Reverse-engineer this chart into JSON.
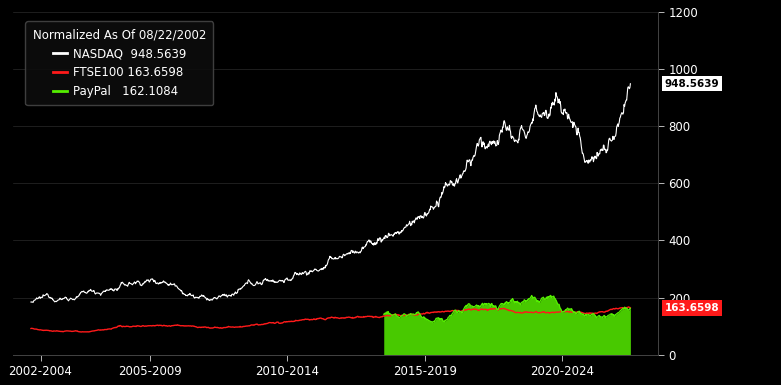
{
  "background_color": "#000000",
  "text_color": "#ffffff",
  "legend_title": "Normalized As Of 08/22/2002",
  "nasdaq_legend": "NASDAQ  948.5639",
  "ftse_legend": "FTSE100 163.6598",
  "paypal_legend": "PayPal   162.1084",
  "nasdaq_color": "#ffffff",
  "ftse_color": "#ff1a1a",
  "paypal_color": "#55ee00",
  "nasdaq_end_label": "948.5639",
  "ftse_end_label": "163.6598",
  "ylim": [
    0,
    1200
  ],
  "yticks": [
    0,
    200,
    400,
    600,
    800,
    1000,
    1200
  ],
  "xlim_start": 2002.0,
  "xlim_end": 2025.5,
  "xtick_positions": [
    2003.0,
    2007.0,
    2012.0,
    2017.0,
    2022.0
  ],
  "xtick_labels": [
    "2002-2004",
    "2005-2009",
    "2010-2014",
    "2015-2019",
    "2020-2024"
  ],
  "legend_bg": "#1a1a1a",
  "axis_color": "#555555",
  "right_panel_color": "#1a2a3a"
}
